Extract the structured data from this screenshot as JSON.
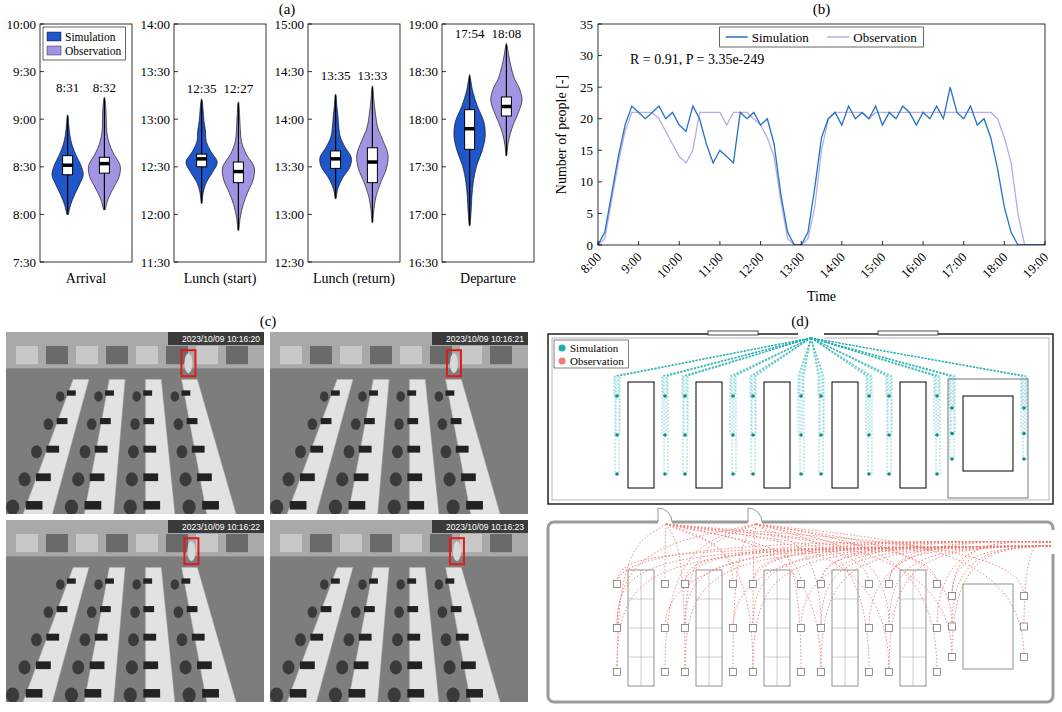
{
  "chart_data": [
    {
      "type": "violin",
      "title": "(a)",
      "xlabel": "Arrival",
      "legend": "upper left",
      "ylim": [
        450,
        600
      ],
      "yticks": [
        {
          "value": 450,
          "label": "7:30"
        },
        {
          "value": 480,
          "label": "8:00"
        },
        {
          "value": 510,
          "label": "8:30"
        },
        {
          "value": 540,
          "label": "9:00"
        },
        {
          "value": 570,
          "label": "9:30"
        },
        {
          "value": 600,
          "label": "10:00"
        }
      ],
      "series": [
        {
          "name": "Simulation",
          "color": "#1f56c9",
          "min": 480,
          "q1": 505,
          "median": 511,
          "q3": 517,
          "max": 542,
          "median_label": "8:31",
          "density": [
            0.05,
            0.2,
            0.45,
            0.75,
            1,
            0.85,
            0.55,
            0.3,
            0.15,
            0.08,
            0.03
          ]
        },
        {
          "name": "Observation",
          "color": "#a394e3",
          "min": 483,
          "q1": 506,
          "median": 512,
          "q3": 516,
          "max": 553,
          "median_label": "8:32",
          "density": [
            0.05,
            0.25,
            0.6,
            0.95,
            1,
            0.6,
            0.3,
            0.15,
            0.12,
            0.1,
            0.03
          ]
        }
      ]
    },
    {
      "type": "violin",
      "xlabel": "Lunch (start)",
      "ylim": [
        690,
        840
      ],
      "yticks": [
        {
          "value": 690,
          "label": "11:30"
        },
        {
          "value": 720,
          "label": "12:00"
        },
        {
          "value": 750,
          "label": "12:30"
        },
        {
          "value": 780,
          "label": "13:00"
        },
        {
          "value": 810,
          "label": "13:30"
        },
        {
          "value": 840,
          "label": "14:00"
        }
      ],
      "series": [
        {
          "name": "Simulation",
          "color": "#1f56c9",
          "min": 727,
          "q1": 750,
          "median": 755,
          "q3": 758,
          "max": 792,
          "median_label": "12:35",
          "density": [
            0.03,
            0.1,
            0.3,
            0.7,
            1,
            0.6,
            0.3,
            0.25,
            0.15,
            0.1,
            0.03
          ]
        },
        {
          "name": "Observation",
          "color": "#a394e3",
          "min": 710,
          "q1": 740,
          "median": 747,
          "q3": 753,
          "max": 790,
          "median_label": "12:27",
          "density": [
            0.03,
            0.12,
            0.3,
            0.6,
            0.95,
            1,
            0.5,
            0.2,
            0.12,
            0.08,
            0.03
          ]
        }
      ]
    },
    {
      "type": "violin",
      "xlabel": "Lunch (return)",
      "ylim": [
        750,
        900
      ],
      "yticks": [
        {
          "value": 750,
          "label": "12:30"
        },
        {
          "value": 780,
          "label": "13:00"
        },
        {
          "value": 810,
          "label": "13:30"
        },
        {
          "value": 840,
          "label": "14:00"
        },
        {
          "value": 870,
          "label": "14:30"
        },
        {
          "value": 900,
          "label": "15:00"
        }
      ],
      "series": [
        {
          "name": "Simulation",
          "color": "#1f56c9",
          "min": 790,
          "q1": 809,
          "median": 815,
          "q3": 820,
          "max": 855,
          "median_label": "13:35",
          "density": [
            0.03,
            0.15,
            0.45,
            0.9,
            1,
            0.6,
            0.3,
            0.2,
            0.15,
            0.08,
            0.03
          ]
        },
        {
          "name": "Observation",
          "color": "#a394e3",
          "min": 775,
          "q1": 800,
          "median": 813,
          "q3": 822,
          "max": 860,
          "median_label": "13:33",
          "density": [
            0.03,
            0.1,
            0.25,
            0.55,
            0.9,
            1,
            0.7,
            0.35,
            0.2,
            0.1,
            0.03
          ]
        }
      ]
    },
    {
      "type": "violin",
      "xlabel": "Departure",
      "ylim": [
        990,
        1140
      ],
      "yticks": [
        {
          "value": 990,
          "label": "16:30"
        },
        {
          "value": 1020,
          "label": "17:00"
        },
        {
          "value": 1050,
          "label": "17:30"
        },
        {
          "value": 1080,
          "label": "18:00"
        },
        {
          "value": 1110,
          "label": "18:30"
        },
        {
          "value": 1140,
          "label": "19:00"
        }
      ],
      "series": [
        {
          "name": "Simulation",
          "color": "#1f56c9",
          "min": 1013,
          "q1": 1061,
          "median": 1074,
          "q3": 1086,
          "max": 1107,
          "median_label": "17:54",
          "density": [
            0.03,
            0.1,
            0.15,
            0.25,
            0.45,
            0.8,
            1,
            0.9,
            0.5,
            0.2,
            0.03
          ]
        },
        {
          "name": "Observation",
          "color": "#a394e3",
          "min": 1057,
          "q1": 1082,
          "median": 1088,
          "q3": 1094,
          "max": 1127,
          "median_label": "18:08",
          "density": [
            0.03,
            0.1,
            0.25,
            0.5,
            0.8,
            1,
            0.85,
            0.5,
            0.3,
            0.15,
            0.03
          ]
        }
      ]
    },
    {
      "type": "line",
      "title": "(b)",
      "xlabel": "Time",
      "ylabel": "Number of people [-]",
      "annotation": "R = 0.91, P = 3.35e-249",
      "legend": "upper center",
      "grid": false,
      "xlim": [
        480,
        1140
      ],
      "xticks": [
        {
          "value": 480,
          "label": "8:00"
        },
        {
          "value": 540,
          "label": "9:00"
        },
        {
          "value": 600,
          "label": "10:00"
        },
        {
          "value": 660,
          "label": "11:00"
        },
        {
          "value": 720,
          "label": "12:00"
        },
        {
          "value": 780,
          "label": "13:00"
        },
        {
          "value": 840,
          "label": "14:00"
        },
        {
          "value": 900,
          "label": "15:00"
        },
        {
          "value": 960,
          "label": "16:00"
        },
        {
          "value": 1020,
          "label": "17:00"
        },
        {
          "value": 1080,
          "label": "18:00"
        },
        {
          "value": 1140,
          "label": "19:00"
        }
      ],
      "ylim": [
        0,
        35
      ],
      "yticks": [
        0,
        5,
        10,
        15,
        20,
        25,
        30,
        35
      ],
      "x": [
        480,
        490,
        500,
        510,
        520,
        530,
        540,
        550,
        560,
        570,
        580,
        590,
        600,
        610,
        620,
        630,
        640,
        650,
        660,
        670,
        680,
        690,
        700,
        710,
        720,
        730,
        740,
        750,
        760,
        770,
        780,
        790,
        800,
        810,
        820,
        830,
        840,
        850,
        860,
        870,
        880,
        890,
        900,
        910,
        920,
        930,
        940,
        950,
        960,
        970,
        980,
        990,
        1000,
        1010,
        1020,
        1030,
        1040,
        1050,
        1060,
        1070,
        1080,
        1090,
        1100,
        1110,
        1120,
        1130,
        1140
      ],
      "series": [
        {
          "name": "Simulation",
          "color": "#2273c3",
          "line_style": "solid",
          "values": [
            0,
            2,
            8,
            14,
            19,
            22,
            21,
            20,
            21,
            22,
            20,
            21,
            19,
            18,
            22,
            20,
            16,
            13,
            15,
            14,
            13,
            21,
            20,
            21,
            19,
            20,
            16,
            8,
            2,
            0,
            0,
            2,
            9,
            17,
            20,
            21,
            19,
            22,
            20,
            21,
            20,
            22,
            19,
            21,
            20,
            22,
            21,
            19,
            21,
            20,
            22,
            20,
            25,
            21,
            20,
            22,
            19,
            20,
            17,
            12,
            6,
            2,
            0,
            0,
            0,
            0,
            0
          ]
        },
        {
          "name": "Observation",
          "color": "#b9aae8",
          "line_style": "solid",
          "values": [
            0,
            1,
            7,
            13,
            18,
            21,
            21,
            21,
            21,
            20,
            18,
            16,
            14,
            13,
            15,
            21,
            21,
            21,
            21,
            19,
            21,
            21,
            21,
            20,
            19,
            17,
            14,
            7,
            1,
            0,
            0,
            1,
            6,
            15,
            20,
            21,
            21,
            21,
            21,
            21,
            20,
            21,
            21,
            21,
            21,
            21,
            21,
            21,
            21,
            21,
            21,
            21,
            21,
            21,
            21,
            21,
            21,
            21,
            21,
            20,
            17,
            13,
            5,
            0,
            0,
            0,
            0
          ]
        }
      ]
    }
  ],
  "photos": {
    "title": "(c)",
    "timestamps": [
      "2023/10/09 10:16:20",
      "2023/10/09 10:16:21",
      "2023/10/09 10:16:22",
      "2023/10/09 10:16:23"
    ]
  },
  "trajectories": {
    "title": "(d)",
    "legend": [
      "Simulation",
      "Observation"
    ]
  }
}
